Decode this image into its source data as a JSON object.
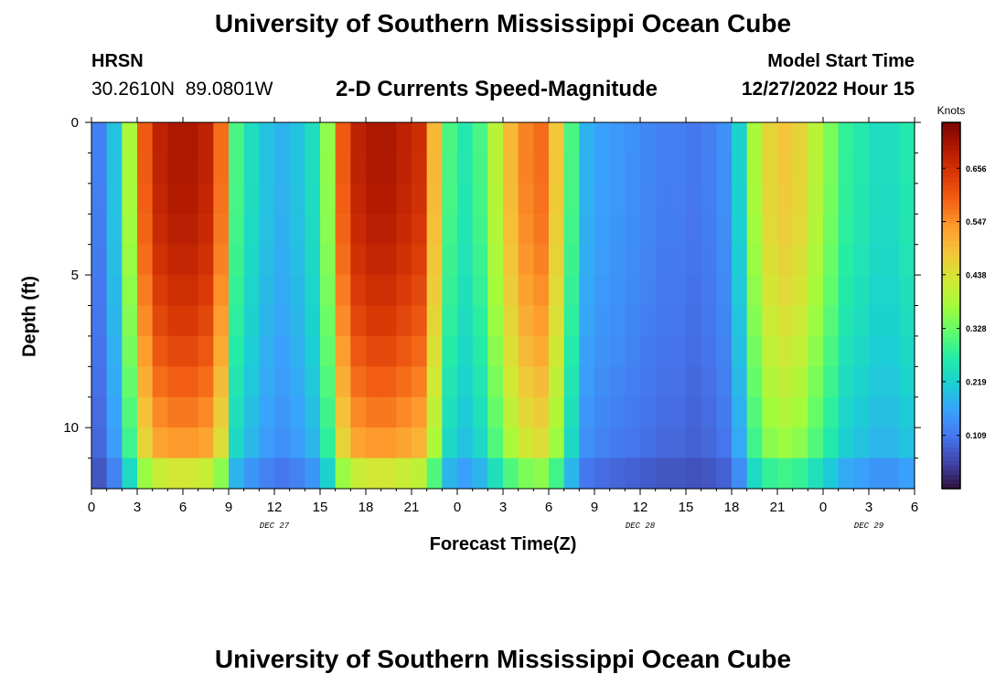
{
  "header": {
    "title": "University of Southern Mississippi Ocean Cube",
    "station": "HRSN",
    "coordinates": "30.2610N  89.0801W",
    "subtitle": "2-D Currents Speed-Magnitude",
    "model_start_label": "Model Start Time",
    "model_start_value": "12/27/2022 Hour 15"
  },
  "footer": {
    "title": "University of Southern Mississippi Ocean Cube"
  },
  "colors": {
    "background": "#ffffff",
    "colormap": [
      "#30123b",
      "#4145ab",
      "#4675ed",
      "#39a2fc",
      "#1bcfd4",
      "#24eca6",
      "#61fc6c",
      "#a4fc3b",
      "#d1e834",
      "#f3c63a",
      "#fe9b2d",
      "#f36315",
      "#d93806",
      "#b11901",
      "#7a0403"
    ]
  },
  "chart_data": {
    "type": "heatmap",
    "title": "2-D Currents Speed-Magnitude",
    "xlabel": "Forecast Time(Z)",
    "ylabel": "Depth (ft)",
    "x_tick_labels": [
      "0",
      "3",
      "6",
      "9",
      "12",
      "15",
      "18",
      "21",
      "0",
      "3",
      "6",
      "9",
      "12",
      "15",
      "18",
      "21",
      "0",
      "3",
      "6"
    ],
    "x_range_hours": [
      0,
      54
    ],
    "date_labels": [
      {
        "text": "DEC 27",
        "hour": 12
      },
      {
        "text": "DEC 28",
        "hour": 36
      },
      {
        "text": "DEC 29",
        "hour": 51
      }
    ],
    "y_tick_labels": [
      "0",
      "5",
      "10"
    ],
    "y_ticks": [
      0,
      5,
      10
    ],
    "y_range_ft": [
      0,
      12
    ],
    "colorbar": {
      "label": "Knots",
      "tick_values": [
        0.109,
        0.219,
        0.328,
        0.438,
        0.547,
        0.656
      ],
      "tick_labels": [
        "0.109",
        "0.219",
        "0.328",
        "0.438",
        "0.547",
        "0.656"
      ],
      "range": [
        0,
        0.75
      ]
    },
    "columns": 54,
    "rows": 12,
    "max_speed_profile": [
      0.12,
      0.2,
      0.38,
      0.6,
      0.68,
      0.7,
      0.7,
      0.68,
      0.58,
      0.3,
      0.24,
      0.2,
      0.18,
      0.2,
      0.24,
      0.36,
      0.6,
      0.68,
      0.7,
      0.7,
      0.68,
      0.66,
      0.5,
      0.3,
      0.26,
      0.3,
      0.4,
      0.5,
      0.56,
      0.58,
      0.48,
      0.3,
      0.18,
      0.16,
      0.15,
      0.14,
      0.13,
      0.12,
      0.12,
      0.11,
      0.12,
      0.14,
      0.22,
      0.38,
      0.46,
      0.48,
      0.46,
      0.4,
      0.34,
      0.28,
      0.26,
      0.24,
      0.24,
      0.26
    ]
  }
}
